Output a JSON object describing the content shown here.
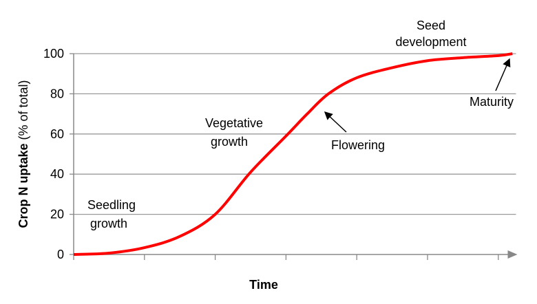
{
  "chart_data": {
    "type": "line",
    "xlabel": "Time",
    "ylabel_bold": "Crop N uptake",
    "ylabel_rest": " (% of total)",
    "ylim": [
      0,
      100
    ],
    "xlim": [
      0,
      6.25
    ],
    "yticks": [
      "0",
      "20",
      "40",
      "60",
      "80",
      "100"
    ],
    "x_tick_count": 7,
    "grid": true,
    "line_color": "#ff0000",
    "series": [
      {
        "x": [
          0,
          0.5,
          1,
          1.5,
          2,
          2.5,
          3,
          3.3,
          3.6,
          4,
          4.5,
          5,
          5.5,
          6,
          6.2
        ],
        "y": [
          0,
          0.7,
          3.4,
          9,
          20,
          41,
          59,
          70,
          80,
          88,
          93,
          96.5,
          98,
          99,
          100
        ]
      }
    ],
    "annotations": [
      {
        "lines": [
          "Seedling",
          "growth"
        ]
      },
      {
        "lines": [
          "Vegetative",
          "growth"
        ]
      },
      {
        "lines": [
          "Flowering"
        ]
      },
      {
        "lines": [
          "Seed",
          "development"
        ]
      },
      {
        "lines": [
          "Maturity"
        ]
      }
    ]
  }
}
